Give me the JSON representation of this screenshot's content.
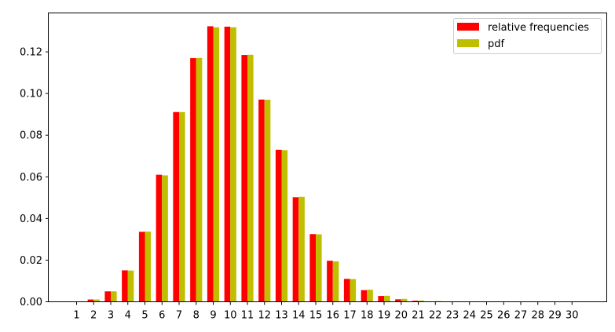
{
  "chart_data": {
    "type": "bar",
    "title": "",
    "xlabel": "",
    "ylabel": "",
    "categories": [
      "1",
      "2",
      "3",
      "4",
      "5",
      "6",
      "7",
      "8",
      "9",
      "10",
      "11",
      "12",
      "13",
      "14",
      "15",
      "16",
      "17",
      "18",
      "19",
      "20",
      "21",
      "22",
      "23",
      "24",
      "25",
      "26",
      "27",
      "28",
      "29",
      "30"
    ],
    "series": [
      {
        "name": "relative frequencies",
        "color": "#ff0000",
        "values": [
          0.0,
          0.0011,
          0.005,
          0.0151,
          0.0336,
          0.061,
          0.0911,
          0.117,
          0.1323,
          0.1321,
          0.1185,
          0.0971,
          0.073,
          0.0502,
          0.0325,
          0.0197,
          0.011,
          0.0056,
          0.0028,
          0.0012,
          0.0005,
          0.0,
          0.0,
          0.0,
          0.0,
          0.0,
          0.0,
          0.0,
          0.0,
          0.0
        ]
      },
      {
        "name": "pdf",
        "color": "#bfbf00",
        "values": [
          0.0,
          0.0011,
          0.005,
          0.015,
          0.0337,
          0.0607,
          0.0911,
          0.1171,
          0.1318,
          0.1318,
          0.1186,
          0.097,
          0.0728,
          0.0504,
          0.0324,
          0.0194,
          0.0109,
          0.0058,
          0.0029,
          0.0014,
          0.0006,
          0.0003,
          0.0001,
          0.0,
          0.0,
          0.0,
          0.0,
          0.0,
          0.0,
          0.0
        ]
      }
    ],
    "ylim": [
      0,
      0.1385
    ],
    "yticks": [
      0.0,
      0.02,
      0.04,
      0.06,
      0.08,
      0.1,
      0.12
    ],
    "ytick_labels": [
      "0.00",
      "0.02",
      "0.04",
      "0.06",
      "0.08",
      "0.10",
      "0.12"
    ],
    "grid": false,
    "legend_position": "top-right"
  }
}
